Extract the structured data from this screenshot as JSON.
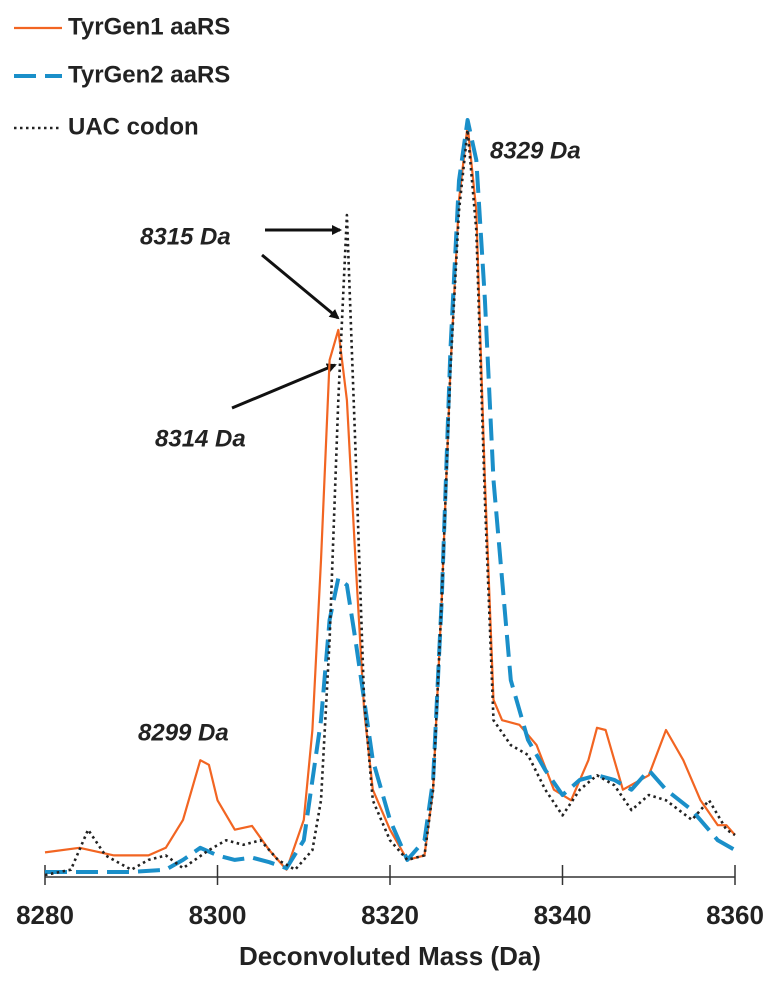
{
  "chart_data": {
    "type": "line",
    "xlabel": "Deconvoluted Mass (Da)",
    "xlim": [
      8280,
      8360
    ],
    "xticks": [
      8280,
      8300,
      8320,
      8340,
      8360
    ],
    "ylim": [
      0,
      100
    ],
    "legend": "upper left",
    "grid": false,
    "annotations": [
      {
        "text": "8315 Da",
        "x": 8315,
        "y": 87.4
      },
      {
        "text": "8314 Da",
        "x": 8314,
        "y": 72.2
      },
      {
        "text": "8329 Da",
        "x": 8329,
        "y": 99.3
      },
      {
        "text": "8299 Da",
        "x": 8299,
        "y": 14.6
      }
    ],
    "series": [
      {
        "name": "TyrGen1 aaRS",
        "color": "#f26522",
        "linestyle": "solid",
        "x": [
          8280,
          8284,
          8288,
          8292,
          8294,
          8296,
          8298,
          8299,
          8300,
          8302,
          8304,
          8306,
          8308,
          8310,
          8311,
          8312,
          8313,
          8314,
          8315,
          8316,
          8317,
          8318,
          8320,
          8322,
          8324,
          8325,
          8326,
          8327,
          8328,
          8329,
          8330,
          8331,
          8332,
          8333,
          8335,
          8337,
          8339,
          8341,
          8343,
          8344,
          8345,
          8347,
          8350,
          8352,
          8354,
          8356,
          8358,
          8359,
          8360
        ],
        "values": [
          3.0,
          3.6,
          2.6,
          2.6,
          3.6,
          7.3,
          15.2,
          14.6,
          9.9,
          6.0,
          6.5,
          3.3,
          0.7,
          7.3,
          19.2,
          41.7,
          68.2,
          72.2,
          62.9,
          41.7,
          21.9,
          11.3,
          6.0,
          2.0,
          2.6,
          11.3,
          36.4,
          66.9,
          89.4,
          99.3,
          88.0,
          52.3,
          23.2,
          20.5,
          19.9,
          17.2,
          11.3,
          9.9,
          15.2,
          19.5,
          19.2,
          11.3,
          13.2,
          19.2,
          15.2,
          9.9,
          6.6,
          6.6,
          5.3
        ]
      },
      {
        "name": "TyrGen2 aaRS",
        "color": "#1a8fc9",
        "linestyle": "dashed",
        "x": [
          8280,
          8285,
          8290,
          8294,
          8296,
          8298,
          8300,
          8302,
          8304,
          8306,
          8308,
          8310,
          8312,
          8313,
          8314,
          8315,
          8316,
          8317,
          8318,
          8320,
          8322,
          8324,
          8325,
          8326,
          8327,
          8328,
          8329,
          8330,
          8331,
          8332,
          8334,
          8336,
          8338,
          8340,
          8342,
          8344,
          8346,
          8348,
          8350,
          8352,
          8355,
          8358,
          8360
        ],
        "values": [
          0.4,
          0.4,
          0.4,
          0.7,
          2.0,
          3.6,
          2.6,
          2.0,
          2.3,
          1.7,
          0.9,
          4.6,
          20.5,
          33.8,
          39.3,
          38.4,
          31.1,
          23.2,
          15.2,
          7.3,
          2.0,
          4.6,
          12.6,
          36.4,
          69.5,
          92.0,
          100,
          94.7,
          76.2,
          52.3,
          25.8,
          17.9,
          13.9,
          10.6,
          12.6,
          13.2,
          12.6,
          11.3,
          13.9,
          11.3,
          8.6,
          4.6,
          3.3
        ]
      },
      {
        "name": "UAC codon",
        "color": "#222222",
        "linestyle": "dotted",
        "x": [
          8280,
          8283,
          8285,
          8287,
          8290,
          8292,
          8294,
          8296,
          8299,
          8301,
          8303,
          8305,
          8307,
          8309,
          8311,
          8312,
          8313,
          8314,
          8315,
          8316,
          8317,
          8318,
          8320,
          8322,
          8324,
          8325,
          8326,
          8327,
          8328,
          8329,
          8330,
          8331,
          8332,
          8334,
          8336,
          8338,
          8340,
          8342,
          8344,
          8346,
          8348,
          8350,
          8352,
          8355,
          8357,
          8359,
          8360
        ],
        "values": [
          0,
          0.7,
          6.0,
          2.6,
          0.7,
          2.0,
          2.6,
          0.9,
          3.3,
          4.6,
          4.0,
          4.6,
          2.0,
          0.7,
          3.3,
          9.9,
          31.1,
          62.9,
          87.4,
          56.3,
          23.2,
          9.9,
          4.6,
          2.0,
          2.6,
          11.3,
          36.4,
          66.9,
          88.0,
          98.7,
          85.4,
          49.7,
          20.5,
          17.2,
          15.9,
          11.3,
          7.9,
          11.3,
          13.2,
          11.9,
          8.6,
          10.6,
          9.9,
          7.3,
          9.9,
          6.0,
          5.3
        ]
      }
    ]
  }
}
